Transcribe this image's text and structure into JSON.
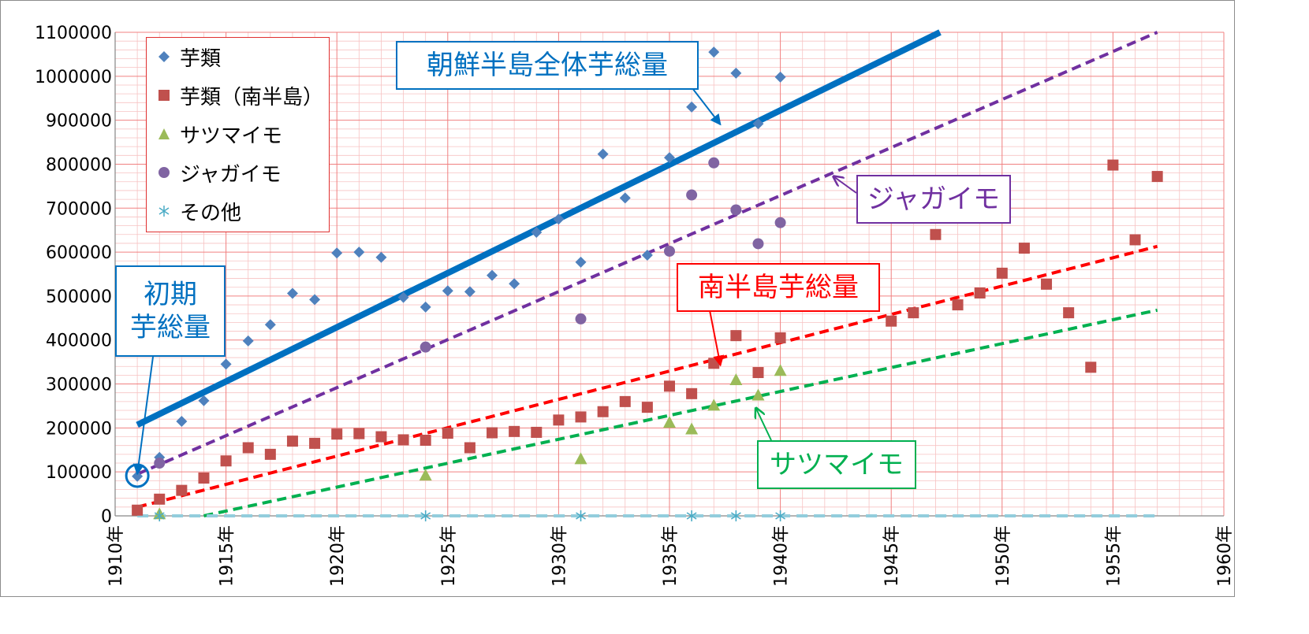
{
  "chart_data": {
    "type": "scatter",
    "title": "",
    "xlabel": "",
    "ylabel": "",
    "xlim": [
      1910,
      1960
    ],
    "ylim": [
      0,
      1100000
    ],
    "x_ticks": [
      1910,
      1915,
      1920,
      1925,
      1930,
      1935,
      1940,
      1945,
      1950,
      1955,
      1960
    ],
    "x_tick_labels": [
      "1910年",
      "1915年",
      "1920年",
      "1925年",
      "1930年",
      "1935年",
      "1940年",
      "1945年",
      "1950年",
      "1955年",
      "1960年"
    ],
    "y_ticks": [
      0,
      100000,
      200000,
      300000,
      400000,
      500000,
      600000,
      700000,
      800000,
      900000,
      1000000,
      1100000
    ],
    "y_tick_labels": [
      "0",
      "100000",
      "200000",
      "300000",
      "400000",
      "500000",
      "600000",
      "700000",
      "800000",
      "900000",
      "1000000",
      "1100000"
    ],
    "grid": true,
    "legend_position": "top-left",
    "series": [
      {
        "name": "芋類",
        "marker": "diamond",
        "color": "#4f81bd",
        "points": [
          [
            1911,
            90000
          ],
          [
            1912,
            133000
          ],
          [
            1913,
            215000
          ],
          [
            1914,
            262000
          ],
          [
            1915,
            345000
          ],
          [
            1916,
            398000
          ],
          [
            1917,
            435000
          ],
          [
            1918,
            506000
          ],
          [
            1919,
            492000
          ],
          [
            1920,
            598000
          ],
          [
            1921,
            600000
          ],
          [
            1922,
            588000
          ],
          [
            1923,
            497000
          ],
          [
            1924,
            475000
          ],
          [
            1925,
            512000
          ],
          [
            1926,
            510000
          ],
          [
            1927,
            547000
          ],
          [
            1928,
            528000
          ],
          [
            1929,
            645000
          ],
          [
            1930,
            675000
          ],
          [
            1931,
            577000
          ],
          [
            1932,
            823000
          ],
          [
            1933,
            723000
          ],
          [
            1934,
            593000
          ],
          [
            1935,
            815000
          ],
          [
            1936,
            930000
          ],
          [
            1937,
            1055000
          ],
          [
            1938,
            1007000
          ],
          [
            1939,
            892000
          ],
          [
            1940,
            998000
          ]
        ]
      },
      {
        "name": "芋類（南半島）",
        "marker": "square",
        "color": "#c0504d",
        "points": [
          [
            1911,
            13000
          ],
          [
            1912,
            38000
          ],
          [
            1913,
            58000
          ],
          [
            1914,
            86000
          ],
          [
            1915,
            125000
          ],
          [
            1916,
            155000
          ],
          [
            1917,
            140000
          ],
          [
            1918,
            170000
          ],
          [
            1919,
            165000
          ],
          [
            1920,
            186000
          ],
          [
            1921,
            187000
          ],
          [
            1922,
            180000
          ],
          [
            1923,
            173000
          ],
          [
            1924,
            172000
          ],
          [
            1925,
            188000
          ],
          [
            1926,
            155000
          ],
          [
            1927,
            189000
          ],
          [
            1928,
            192000
          ],
          [
            1929,
            190000
          ],
          [
            1930,
            218000
          ],
          [
            1931,
            225000
          ],
          [
            1932,
            237000
          ],
          [
            1933,
            260000
          ],
          [
            1934,
            247000
          ],
          [
            1935,
            295000
          ],
          [
            1936,
            278000
          ],
          [
            1937,
            347000
          ],
          [
            1938,
            410000
          ],
          [
            1939,
            326000
          ],
          [
            1940,
            405000
          ],
          [
            1945,
            443000
          ],
          [
            1946,
            462000
          ],
          [
            1947,
            640000
          ],
          [
            1948,
            480000
          ],
          [
            1949,
            507000
          ],
          [
            1950,
            552000
          ],
          [
            1951,
            609000
          ],
          [
            1952,
            527000
          ],
          [
            1953,
            462000
          ],
          [
            1954,
            338000
          ],
          [
            1955,
            798000
          ],
          [
            1956,
            628000
          ],
          [
            1957,
            772000
          ]
        ]
      },
      {
        "name": "サツマイモ",
        "marker": "triangle",
        "color": "#9bbb59",
        "points": [
          [
            1912,
            5000
          ],
          [
            1924,
            93000
          ],
          [
            1931,
            130000
          ],
          [
            1935,
            213000
          ],
          [
            1936,
            198000
          ],
          [
            1937,
            252000
          ],
          [
            1938,
            310000
          ],
          [
            1939,
            275000
          ],
          [
            1940,
            331000
          ]
        ]
      },
      {
        "name": "ジャガイモ",
        "marker": "circle",
        "color": "#8064a2",
        "points": [
          [
            1912,
            120000
          ],
          [
            1924,
            384000
          ],
          [
            1931,
            448000
          ],
          [
            1935,
            602000
          ],
          [
            1936,
            730000
          ],
          [
            1937,
            803000
          ],
          [
            1938,
            696000
          ],
          [
            1939,
            619000
          ],
          [
            1940,
            667000
          ]
        ]
      },
      {
        "name": "その他",
        "marker": "asterisk",
        "color": "#4bacc6",
        "points": [
          [
            1912,
            0
          ],
          [
            1924,
            0
          ],
          [
            1931,
            0
          ],
          [
            1936,
            0
          ],
          [
            1938,
            0
          ],
          [
            1940,
            0
          ]
        ]
      }
    ],
    "trendlines": [
      {
        "series": "芋類",
        "x": [
          1911,
          1947.2
        ],
        "y": [
          207000,
          1100000
        ],
        "color": "#0070c0",
        "style": "solid"
      },
      {
        "series": "ジャガイモ",
        "x": [
          1911,
          1957
        ],
        "y": [
          95000,
          1100000
        ],
        "color": "#7030a0",
        "style": "dashed"
      },
      {
        "series": "芋類（南半島）",
        "x": [
          1911,
          1957
        ],
        "y": [
          20000,
          613000
        ],
        "color": "#ff0000",
        "style": "dashed"
      },
      {
        "series": "サツマイモ",
        "x": [
          1914,
          1957
        ],
        "y": [
          0,
          468000
        ],
        "color": "#00b050",
        "style": "dashed"
      },
      {
        "series": "その他",
        "x": [
          1911,
          1957
        ],
        "y": [
          0,
          0
        ],
        "color": "#92cddc",
        "style": "dashed"
      }
    ],
    "annotations": [
      {
        "id": "total",
        "text": "朝鮮半島全体芋総量",
        "color": "#0070c0",
        "target": [
          1937.3,
          890000
        ]
      },
      {
        "id": "potato",
        "text": "ジャガイモ",
        "color": "#7030a0",
        "target": [
          1942.4,
          772000
        ]
      },
      {
        "id": "south",
        "text": "南半島芋総量",
        "color": "#ff0000",
        "target": [
          1937.3,
          342000
        ]
      },
      {
        "id": "initial",
        "text": "初期\n芋総量",
        "color": "#0070c0",
        "target": [
          1911,
          95000
        ]
      },
      {
        "id": "sweet",
        "text": "サツマイモ",
        "color": "#00b050",
        "target": [
          1938.9,
          245000
        ]
      }
    ]
  }
}
